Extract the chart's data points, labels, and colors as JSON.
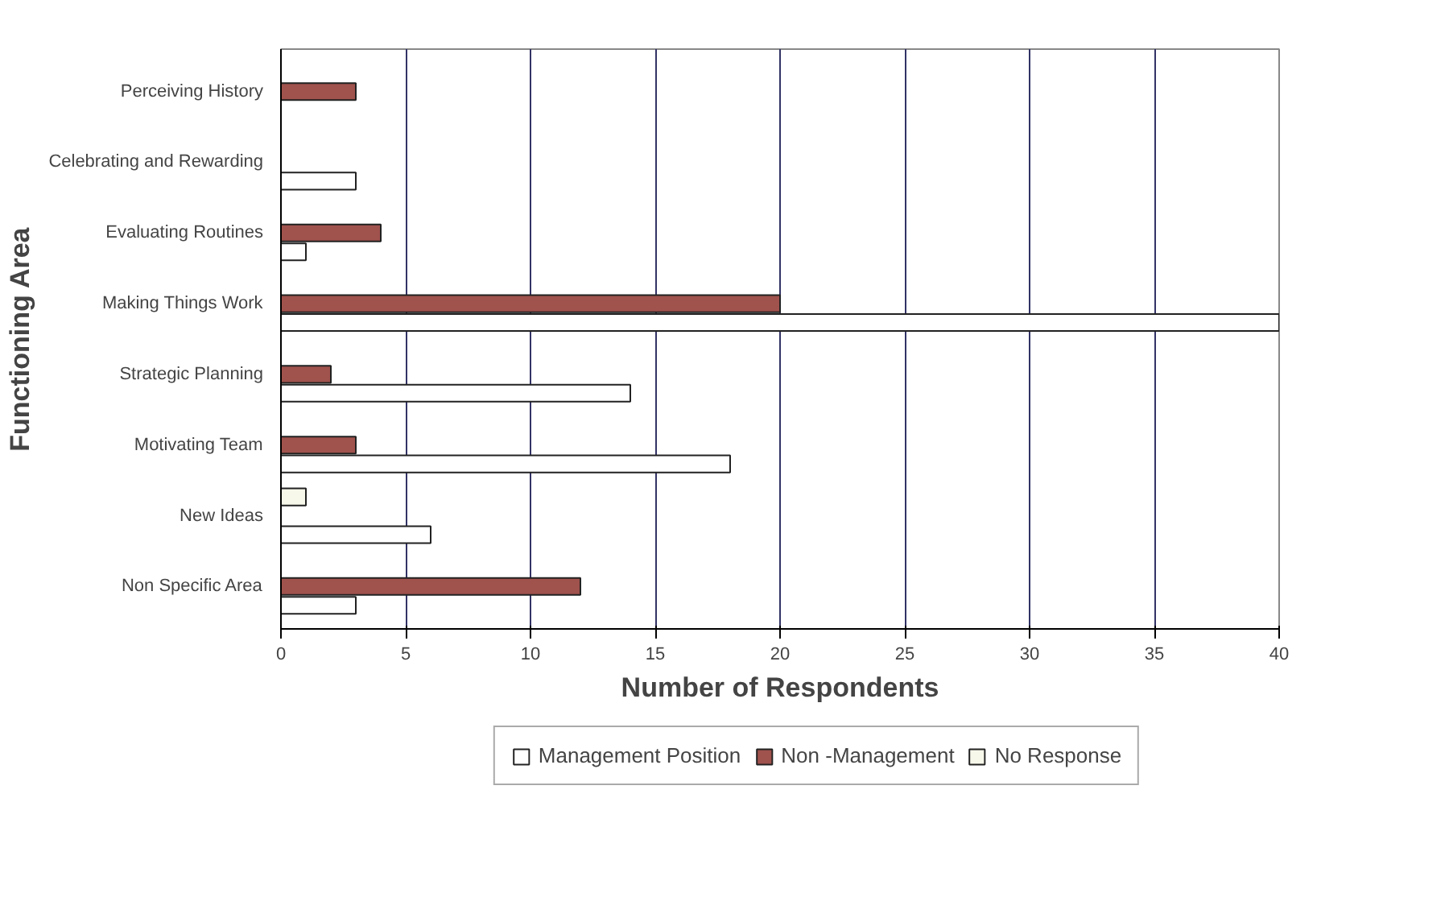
{
  "chart_data": {
    "type": "bar",
    "orientation": "horizontal",
    "xlabel": "Number of Respondents",
    "ylabel": "Functioning Area",
    "categories": [
      "Perceiving History",
      "Celebrating and Rewarding",
      "Evaluating Routines",
      "Making Things Work",
      "Strategic Planning",
      "Motivating Team",
      "New Ideas",
      "Non Specific Area"
    ],
    "series": [
      {
        "name": "Management Position",
        "color": "#ffffff",
        "values": [
          null,
          3,
          1,
          40,
          14,
          18,
          6,
          3
        ]
      },
      {
        "name": "Non -Management",
        "color": "#a0524d",
        "values": [
          3,
          null,
          4,
          20,
          2,
          3,
          null,
          12
        ]
      },
      {
        "name": "No Response",
        "color": "#f7f7ea",
        "values": [
          null,
          null,
          null,
          null,
          null,
          null,
          1,
          null
        ]
      }
    ],
    "xlim": [
      0,
      40
    ],
    "xticks": [
      0,
      5,
      10,
      15,
      20,
      25,
      30,
      35,
      40
    ],
    "grid": "x",
    "legend": "bottom"
  }
}
